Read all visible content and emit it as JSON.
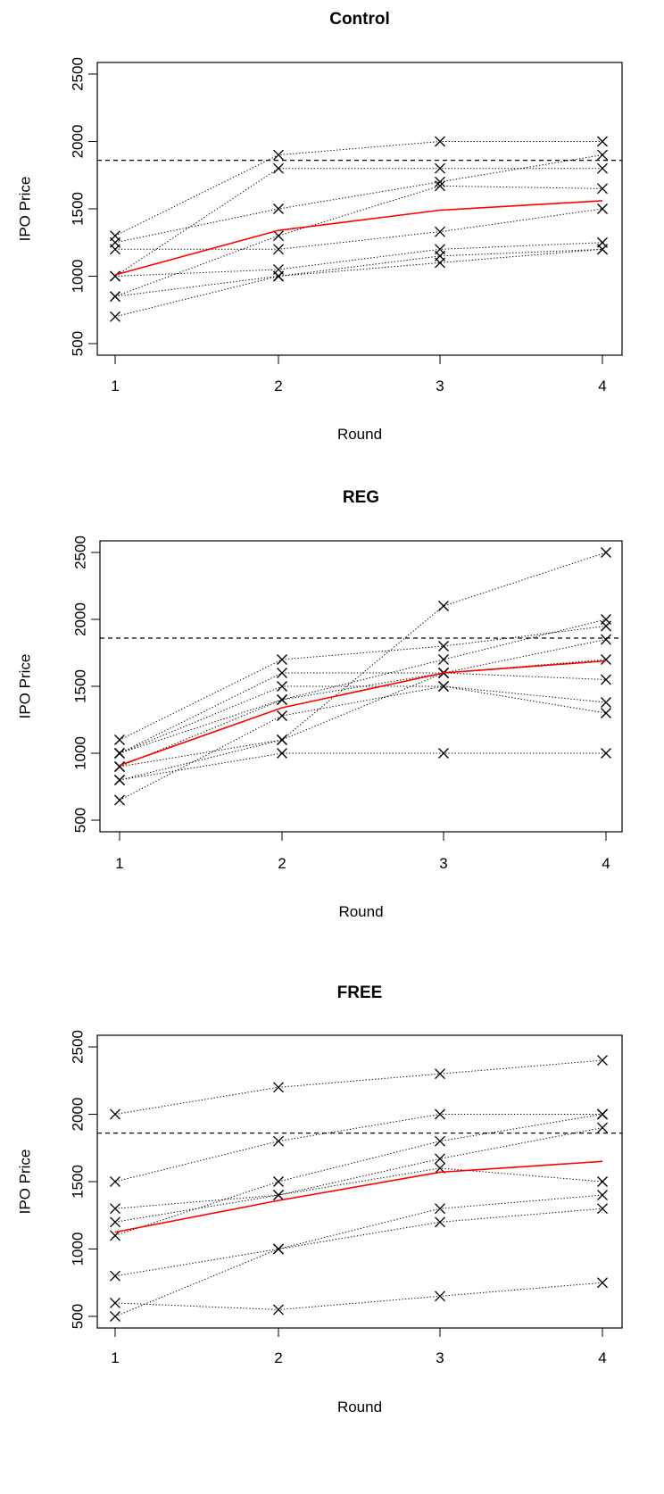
{
  "figure": {
    "colors": {
      "mean_line": "#ff0000",
      "participant_lines": "#000000",
      "reference_line": "#000000"
    }
  },
  "chart_data": [
    {
      "type": "line",
      "title": "Control",
      "xlabel": "Round",
      "ylabel": "IPO Price",
      "x": [
        1,
        2,
        3,
        4
      ],
      "xticks": [
        "1",
        "2",
        "3",
        "4"
      ],
      "yticks": [
        "500",
        "1000",
        "1500",
        "2000",
        "2500"
      ],
      "ylim": [
        500,
        2500
      ],
      "reference_line": 1860,
      "grid": false,
      "mean": {
        "values": [
          1010,
          1340,
          1490,
          1560
        ]
      },
      "participants": [
        [
          1300,
          1900,
          2000,
          2000
        ],
        [
          1250,
          1500,
          1700,
          1900
        ],
        [
          1200,
          1200,
          1330,
          1500
        ],
        [
          1000,
          1800,
          1800,
          1800
        ],
        [
          1000,
          1050,
          1200,
          1250
        ],
        [
          850,
          1300,
          1670,
          1650
        ],
        [
          850,
          1000,
          1150,
          1200
        ],
        [
          700,
          1000,
          1100,
          1200
        ]
      ]
    },
    {
      "type": "line",
      "title": "REG",
      "xlabel": "Round",
      "ylabel": "IPO Price",
      "x": [
        1,
        2,
        3,
        4
      ],
      "xticks": [
        "1",
        "2",
        "3",
        "4"
      ],
      "yticks": [
        "500",
        "1000",
        "1500",
        "2000",
        "2500"
      ],
      "ylim": [
        500,
        2500
      ],
      "reference_line": 1860,
      "grid": false,
      "mean": {
        "values": [
          910,
          1340,
          1600,
          1690
        ]
      },
      "participants": [
        [
          1100,
          1700,
          1800,
          1950
        ],
        [
          1000,
          1600,
          1600,
          1550
        ],
        [
          1000,
          1500,
          1500,
          1300
        ],
        [
          900,
          1400,
          1700,
          2000
        ],
        [
          1000,
          1400,
          1600,
          1850
        ],
        [
          800,
          1100,
          2100,
          2500
        ],
        [
          800,
          1000,
          1000,
          1000
        ],
        [
          650,
          1280,
          1500,
          1380
        ],
        [
          900,
          1100,
          1600,
          1700
        ]
      ]
    },
    {
      "type": "line",
      "title": "FREE",
      "xlabel": "Round",
      "ylabel": "IPO Price",
      "x": [
        1,
        2,
        3,
        4
      ],
      "xticks": [
        "1",
        "2",
        "3",
        "4"
      ],
      "yticks": [
        "500",
        "1000",
        "1500",
        "2000",
        "2500"
      ],
      "ylim": [
        500,
        2500
      ],
      "reference_line": 1860,
      "grid": false,
      "mean": {
        "values": [
          1125,
          1360,
          1570,
          1650
        ]
      },
      "participants": [
        [
          2000,
          2200,
          2300,
          2400
        ],
        [
          1500,
          1800,
          2000,
          2000
        ],
        [
          1300,
          1400,
          1670,
          1900
        ],
        [
          1200,
          1400,
          1600,
          1500
        ],
        [
          1100,
          1500,
          1800,
          2000
        ],
        [
          800,
          1000,
          1300,
          1400
        ],
        [
          600,
          550,
          650,
          750
        ],
        [
          500,
          1000,
          1200,
          1300
        ]
      ]
    }
  ]
}
